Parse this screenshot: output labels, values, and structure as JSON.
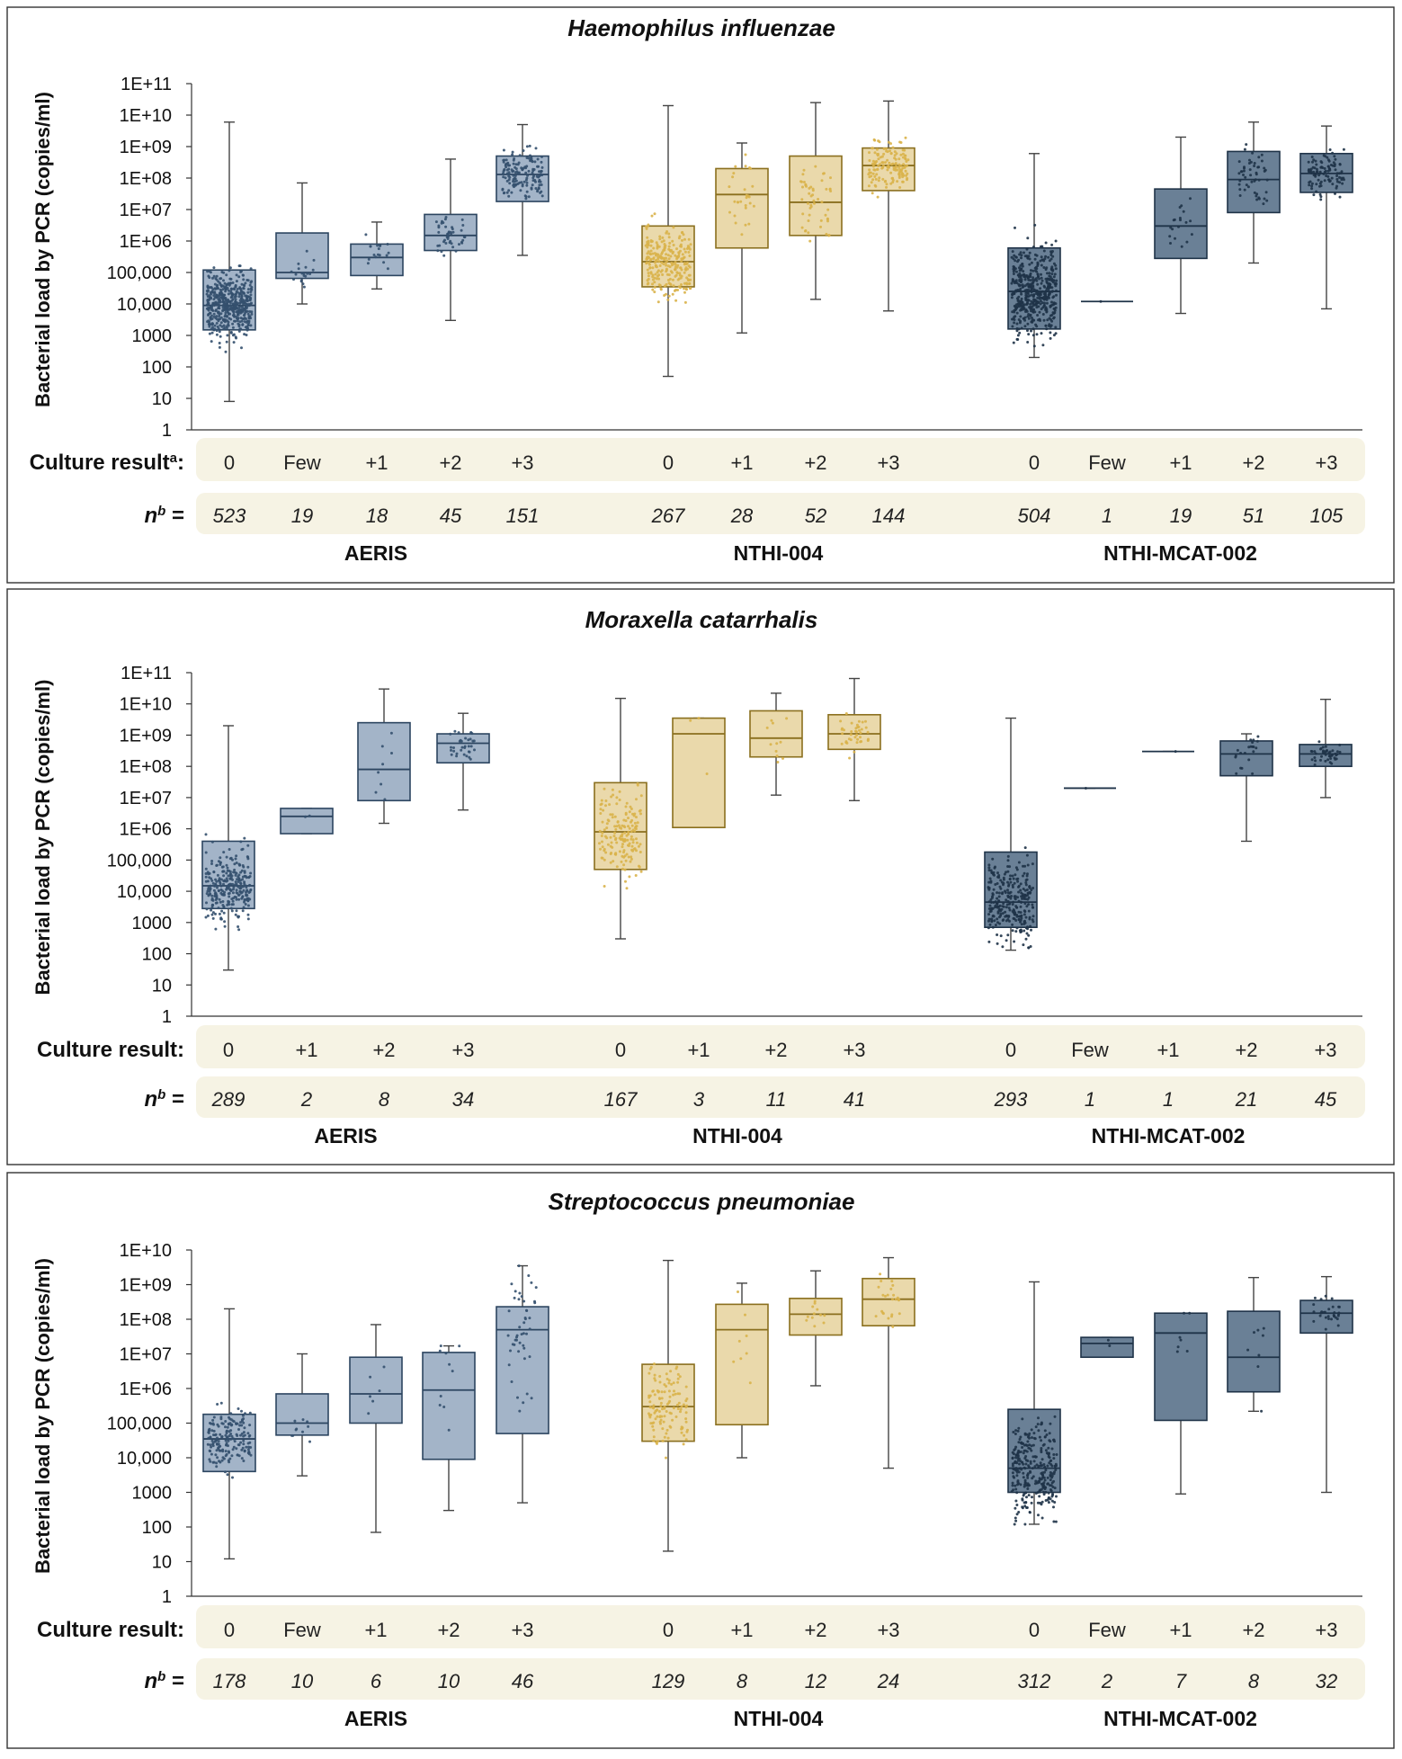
{
  "colors": {
    "aeris": "#a3b4c8",
    "aeris_dot": "#34506e",
    "nthi004": "#ead9ab",
    "nthi004_edge": "#8a6f1e",
    "nthi004_dot": "#d9b24a",
    "mcat": "#6a8096",
    "mcat_dot": "#1f3348",
    "band": "#f6f3e4"
  },
  "chart_data": [
    {
      "type": "box",
      "title": "Haemophilus influenzae",
      "ylabel": "Bacterial load by PCR (copies/ml)",
      "yscale": "log",
      "ylim": [
        1,
        100000000000.0
      ],
      "ytick_labels": [
        "1",
        "10",
        "100",
        "1000",
        "10,000",
        "100,000",
        "1E+06",
        "1E+07",
        "1E+08",
        "1E+09",
        "1E+10",
        "1E+11"
      ],
      "culture_label": "Culture result",
      "culture_sup": "a",
      "n_label": "n",
      "n_sup": "b",
      "groups": [
        {
          "study": "AERIS",
          "color": "aeris",
          "boxes": [
            {
              "cat": "0",
              "n": "523",
              "min": 8,
              "q1": 1500,
              "median": 9000,
              "q3": 120000,
              "max": 6000000000,
              "dots": 523
            },
            {
              "cat": "Few",
              "n": "19",
              "min": 10000,
              "q1": 65000,
              "median": 100000,
              "q3": 1800000,
              "max": 70000000,
              "dots": 19
            },
            {
              "cat": "+1",
              "n": "18",
              "min": 30000,
              "q1": 80000,
              "median": 300000,
              "q3": 800000,
              "max": 4000000,
              "dots": 18
            },
            {
              "cat": "+2",
              "n": "45",
              "min": 3000,
              "q1": 500000,
              "median": 1500000,
              "q3": 7000000,
              "max": 400000000,
              "dots": 45
            },
            {
              "cat": "+3",
              "n": "151",
              "min": 350000,
              "q1": 18000000,
              "median": 130000000,
              "q3": 500000000,
              "max": 5000000000,
              "dots": 151
            }
          ]
        },
        {
          "study": "NTHI-004",
          "color": "nthi004",
          "boxes": [
            {
              "cat": "0",
              "n": "267",
              "min": 50,
              "q1": 35000,
              "median": 220000,
              "q3": 3000000,
              "max": 20000000000,
              "dots": 267
            },
            {
              "cat": "+1",
              "n": "28",
              "min": 1200,
              "q1": 600000,
              "median": 30000000,
              "q3": 200000000,
              "max": 1300000000,
              "dots": 28
            },
            {
              "cat": "+2",
              "n": "52",
              "min": 14000,
              "q1": 1500000,
              "median": 17000000,
              "q3": 500000000,
              "max": 25000000000,
              "dots": 52
            },
            {
              "cat": "+3",
              "n": "144",
              "min": 6000,
              "q1": 40000000,
              "median": 250000000,
              "q3": 900000000,
              "max": 28000000000,
              "dots": 144
            }
          ]
        },
        {
          "study": "NTHI-MCAT-002",
          "color": "mcat",
          "boxes": [
            {
              "cat": "0",
              "n": "504",
              "min": 200,
              "q1": 1600,
              "median": 25000,
              "q3": 600000,
              "max": 600000000,
              "dots": 504
            },
            {
              "cat": "Few",
              "n": "1",
              "min": 12000,
              "q1": 12000,
              "median": 12000,
              "q3": 12000,
              "max": 12000,
              "dots": 1
            },
            {
              "cat": "+1",
              "n": "19",
              "min": 5000,
              "q1": 280000,
              "median": 3000000,
              "q3": 45000000,
              "max": 2000000000,
              "dots": 19
            },
            {
              "cat": "+2",
              "n": "51",
              "min": 200000,
              "q1": 8000000,
              "median": 90000000,
              "q3": 700000000,
              "max": 6000000000,
              "dots": 51
            },
            {
              "cat": "+3",
              "n": "105",
              "min": 7000,
              "q1": 35000000,
              "median": 140000000,
              "q3": 600000000,
              "max": 4500000000,
              "dots": 105
            }
          ]
        }
      ]
    },
    {
      "type": "box",
      "title": "Moraxella catarrhalis",
      "ylabel": "Bacterial load by PCR (copies/ml)",
      "yscale": "log",
      "ylim": [
        1,
        100000000000.0
      ],
      "ytick_labels": [
        "1",
        "10",
        "100",
        "1000",
        "10,000",
        "100,000",
        "1E+06",
        "1E+07",
        "1E+08",
        "1E+09",
        "1E+10",
        "1E+11"
      ],
      "culture_label": "Culture result:",
      "culture_sup": "",
      "n_label": "n",
      "n_sup": "b",
      "groups": [
        {
          "study": "AERIS",
          "color": "aeris",
          "boxes": [
            {
              "cat": "0",
              "n": "289",
              "min": 30,
              "q1": 2800,
              "median": 15000,
              "q3": 400000,
              "max": 2000000000,
              "dots": 289
            },
            {
              "cat": "+1",
              "n": "2",
              "min": 700000,
              "q1": 700000,
              "median": 2500000,
              "q3": 4500000,
              "max": 4500000,
              "dots": 2
            },
            {
              "cat": "+2",
              "n": "8",
              "min": 1500000,
              "q1": 8000000,
              "median": 80000000,
              "q3": 2500000000,
              "max": 30000000000,
              "dots": 8
            },
            {
              "cat": "+3",
              "n": "34",
              "min": 4000000,
              "q1": 130000000,
              "median": 550000000,
              "q3": 1100000000,
              "max": 5000000000,
              "dots": 34
            }
          ]
        },
        {
          "study": "NTHI-004",
          "color": "nthi004",
          "boxes": [
            {
              "cat": "0",
              "n": "167",
              "min": 300,
              "q1": 50000,
              "median": 800000,
              "q3": 30000000,
              "max": 15000000000,
              "dots": 167
            },
            {
              "cat": "+1",
              "n": "3",
              "min": 1100000,
              "q1": 1100000,
              "median": 1100000000,
              "q3": 3500000000,
              "max": 3500000000,
              "dots": 3
            },
            {
              "cat": "+2",
              "n": "11",
              "min": 12000000,
              "q1": 200000000,
              "median": 800000000,
              "q3": 6000000000,
              "max": 22000000000,
              "dots": 11
            },
            {
              "cat": "+3",
              "n": "41",
              "min": 8000000,
              "q1": 350000000,
              "median": 1100000000,
              "q3": 4500000000,
              "max": 65000000000,
              "dots": 41
            }
          ]
        },
        {
          "study": "NTHI-MCAT-002",
          "color": "mcat",
          "boxes": [
            {
              "cat": "0",
              "n": "293",
              "min": 130,
              "q1": 700,
              "median": 4500,
              "q3": 180000,
              "max": 3500000000,
              "dots": 293
            },
            {
              "cat": "Few",
              "n": "1",
              "min": 20000000,
              "q1": 20000000,
              "median": 20000000,
              "q3": 20000000,
              "max": 20000000,
              "dots": 1
            },
            {
              "cat": "+1",
              "n": "1",
              "min": 300000000,
              "q1": 300000000,
              "median": 300000000,
              "q3": 300000000,
              "max": 300000000,
              "dots": 1
            },
            {
              "cat": "+2",
              "n": "21",
              "min": 400000,
              "q1": 50000000,
              "median": 250000000,
              "q3": 650000000,
              "max": 1100000000,
              "dots": 21
            },
            {
              "cat": "+3",
              "n": "45",
              "min": 10000000,
              "q1": 100000000,
              "median": 250000000,
              "q3": 500000000,
              "max": 14000000000,
              "dots": 45
            }
          ]
        }
      ]
    },
    {
      "type": "box",
      "title": "Streptococcus pneumoniae",
      "ylabel": "Bacterial load by PCR (copies/ml)",
      "yscale": "log",
      "ylim": [
        1,
        10000000000.0
      ],
      "ytick_labels": [
        "1",
        "10",
        "100",
        "1000",
        "10,000",
        "100,000",
        "1E+06",
        "1E+07",
        "1E+08",
        "1E+09",
        "1E+10"
      ],
      "culture_label": "Culture result:",
      "culture_sup": "",
      "n_label": "n",
      "n_sup": "b",
      "groups": [
        {
          "study": "AERIS",
          "color": "aeris",
          "boxes": [
            {
              "cat": "0",
              "n": "178",
              "min": 12,
              "q1": 4000,
              "median": 35000,
              "q3": 180000,
              "max": 200000000,
              "dots": 178
            },
            {
              "cat": "Few",
              "n": "10",
              "min": 3000,
              "q1": 45000,
              "median": 100000,
              "q3": 700000,
              "max": 10000000,
              "dots": 10
            },
            {
              "cat": "+1",
              "n": "6",
              "min": 70,
              "q1": 100000,
              "median": 700000,
              "q3": 8000000,
              "max": 70000000,
              "dots": 6
            },
            {
              "cat": "+2",
              "n": "10",
              "min": 300,
              "q1": 9000,
              "median": 900000,
              "q3": 11000000,
              "max": 17000000,
              "dots": 10
            },
            {
              "cat": "+3",
              "n": "46",
              "min": 500,
              "q1": 50000,
              "median": 50000000,
              "q3": 230000000,
              "max": 3500000000,
              "dots": 46
            }
          ]
        },
        {
          "study": "NTHI-004",
          "color": "nthi004",
          "boxes": [
            {
              "cat": "0",
              "n": "129",
              "min": 20,
              "q1": 30000,
              "median": 300000,
              "q3": 5000000,
              "max": 5000000000,
              "dots": 129
            },
            {
              "cat": "+1",
              "n": "8",
              "min": 10000,
              "q1": 90000,
              "median": 50000000,
              "q3": 270000000,
              "max": 1100000000,
              "dots": 8
            },
            {
              "cat": "+2",
              "n": "12",
              "min": 1200000,
              "q1": 35000000,
              "median": 140000000,
              "q3": 400000000,
              "max": 2500000000,
              "dots": 12
            },
            {
              "cat": "+3",
              "n": "24",
              "min": 5000,
              "q1": 65000000,
              "median": 380000000,
              "q3": 1500000000,
              "max": 6000000000,
              "dots": 24
            }
          ]
        },
        {
          "study": "NTHI-MCAT-002",
          "color": "mcat",
          "boxes": [
            {
              "cat": "0",
              "n": "312",
              "min": 120,
              "q1": 1000,
              "median": 5000,
              "q3": 250000,
              "max": 1200000000,
              "dots": 312
            },
            {
              "cat": "Few",
              "n": "2",
              "min": 8000000,
              "q1": 8000000,
              "median": 20000000,
              "q3": 30000000,
              "max": 30000000,
              "dots": 2
            },
            {
              "cat": "+1",
              "n": "7",
              "min": 900,
              "q1": 120000,
              "median": 40000000,
              "q3": 150000000,
              "max": 150000000,
              "dots": 7
            },
            {
              "cat": "+2",
              "n": "8",
              "min": 220000,
              "q1": 800000,
              "median": 8000000,
              "q3": 170000000,
              "max": 1600000000,
              "dots": 8
            },
            {
              "cat": "+3",
              "n": "32",
              "min": 1000,
              "q1": 40000000,
              "median": 150000000,
              "q3": 350000000,
              "max": 1700000000,
              "dots": 32
            }
          ]
        }
      ]
    }
  ]
}
